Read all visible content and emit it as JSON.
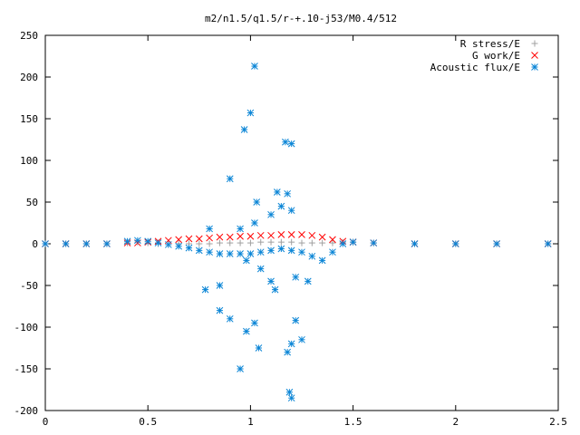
{
  "chart_data": {
    "type": "scatter",
    "title": "m2/n1.5/q1.5/r-+.10-j53/M0.4/512",
    "xlabel": "",
    "ylabel": "",
    "xlim": [
      0,
      2.5
    ],
    "ylim": [
      -200,
      250
    ],
    "xticks": [
      "0",
      "0.5",
      "1",
      "1.5",
      "2",
      "2.5"
    ],
    "yticks": [
      "250",
      "200",
      "150",
      "100",
      "50",
      "0",
      "-50",
      "-100",
      "-150",
      "-200"
    ],
    "grid": false,
    "legend_position": "top-right",
    "series": [
      {
        "name": "R stress/E",
        "marker": "+",
        "color": "#a0a0a0",
        "x": [
          0.0,
          0.1,
          0.2,
          0.3,
          0.4,
          0.45,
          0.5,
          0.55,
          0.6,
          0.65,
          0.7,
          0.75,
          0.8,
          0.85,
          0.9,
          0.95,
          1.0,
          1.05,
          1.1,
          1.15,
          1.2,
          1.25,
          1.3,
          1.35,
          1.4,
          1.45,
          1.5,
          1.6,
          1.8,
          2.0,
          2.2,
          2.45
        ],
        "y": [
          0,
          0,
          0,
          0,
          1,
          2,
          1,
          0,
          -1,
          0,
          0,
          0,
          0,
          1,
          1,
          1,
          1,
          2,
          2,
          2,
          2,
          1,
          1,
          1,
          1,
          2,
          2,
          1,
          0,
          0,
          0,
          0
        ]
      },
      {
        "name": "G work/E",
        "marker": "x",
        "color": "#ff0000",
        "x": [
          0.0,
          0.1,
          0.2,
          0.3,
          0.4,
          0.45,
          0.5,
          0.55,
          0.6,
          0.65,
          0.7,
          0.75,
          0.8,
          0.85,
          0.9,
          0.95,
          1.0,
          1.05,
          1.1,
          1.15,
          1.2,
          1.25,
          1.3,
          1.35,
          1.4,
          1.45,
          1.5,
          1.6,
          1.8,
          2.0,
          2.2,
          2.45
        ],
        "y": [
          0,
          0,
          0,
          0,
          1,
          1,
          2,
          3,
          4,
          5,
          6,
          6,
          7,
          8,
          8,
          9,
          9,
          10,
          10,
          11,
          11,
          11,
          10,
          8,
          5,
          3,
          2,
          1,
          0,
          0,
          0,
          0
        ]
      },
      {
        "name": "Acoustic flux/E",
        "marker": "*",
        "color": "#0a85d6",
        "x": [
          0.0,
          0.1,
          0.2,
          0.3,
          0.4,
          0.45,
          0.5,
          0.55,
          0.6,
          0.65,
          0.7,
          0.75,
          0.8,
          0.85,
          0.9,
          0.95,
          1.0,
          1.05,
          1.1,
          1.15,
          1.2,
          1.25,
          1.3,
          1.35,
          1.4,
          1.45,
          1.5,
          1.6,
          1.8,
          2.0,
          2.2,
          2.45,
          0.97,
          1.0,
          1.02,
          1.03,
          1.17,
          1.2,
          0.9,
          1.13,
          1.18,
          0.8,
          1.2,
          1.02,
          0.95,
          1.1,
          1.15,
          0.98,
          1.05,
          1.22,
          1.1,
          0.85,
          1.12,
          0.85,
          1.28,
          0.78,
          0.9,
          1.02,
          1.22,
          0.98,
          0.95,
          1.25,
          1.18,
          1.04,
          1.2,
          1.19,
          1.2
        ],
        "y": [
          0,
          0,
          0,
          0,
          3,
          4,
          3,
          1,
          -1,
          -3,
          -5,
          -8,
          -10,
          -12,
          -12,
          -12,
          -12,
          -10,
          -8,
          -6,
          -8,
          -10,
          -15,
          -20,
          -10,
          0,
          2,
          1,
          0,
          0,
          0,
          0,
          137,
          157,
          213,
          50,
          122,
          120,
          78,
          62,
          60,
          18,
          40,
          25,
          18,
          35,
          45,
          -20,
          -30,
          -40,
          -45,
          -50,
          -55,
          -80,
          -45,
          -55,
          -90,
          -95,
          -92,
          -105,
          -150,
          -115,
          -130,
          -125,
          -120,
          -178,
          -185
        ]
      }
    ]
  }
}
